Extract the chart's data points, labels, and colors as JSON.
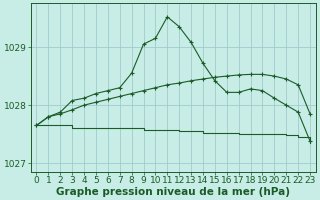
{
  "background_color": "#c8ece6",
  "grid_color": "#a0cccc",
  "line_color": "#1a5c28",
  "title": "Graphe pression niveau de la mer (hPa)",
  "title_fontsize": 7.5,
  "tick_fontsize": 6.5,
  "xlim": [
    -0.5,
    23.5
  ],
  "ylim": [
    1026.85,
    1029.75
  ],
  "yticks": [
    1027,
    1028,
    1029
  ],
  "xticks": [
    0,
    1,
    2,
    3,
    4,
    5,
    6,
    7,
    8,
    9,
    10,
    11,
    12,
    13,
    14,
    15,
    16,
    17,
    18,
    19,
    20,
    21,
    22,
    23
  ],
  "line1_x": [
    0,
    1,
    2,
    3,
    4,
    5,
    6,
    7,
    8,
    9,
    10,
    11,
    12,
    13,
    14,
    15,
    16,
    17,
    18,
    19,
    20,
    21,
    22,
    23
  ],
  "line1_y": [
    1027.65,
    1027.8,
    1027.85,
    1027.92,
    1028.0,
    1028.05,
    1028.1,
    1028.15,
    1028.2,
    1028.25,
    1028.3,
    1028.35,
    1028.38,
    1028.42,
    1028.45,
    1028.48,
    1028.5,
    1028.52,
    1028.53,
    1028.53,
    1028.5,
    1028.45,
    1028.35,
    1027.85
  ],
  "line2_x": [
    0,
    1,
    2,
    3,
    4,
    5,
    6,
    7,
    8,
    9,
    10,
    11,
    12,
    13,
    14,
    15,
    16,
    17,
    18,
    19,
    20,
    21,
    22,
    23
  ],
  "line2_y": [
    1027.65,
    1027.8,
    1027.88,
    1028.08,
    1028.12,
    1028.2,
    1028.25,
    1028.3,
    1028.55,
    1029.05,
    1029.15,
    1029.52,
    1029.35,
    1029.08,
    1028.72,
    1028.42,
    1028.22,
    1028.22,
    1028.28,
    1028.25,
    1028.12,
    1028.0,
    1027.88,
    1027.38
  ],
  "line3_x": [
    0,
    1,
    2,
    3,
    4,
    5,
    6,
    7,
    8,
    9,
    10,
    11,
    12,
    13,
    14,
    15,
    16,
    17,
    18,
    19,
    20,
    21,
    22,
    23
  ],
  "line3_y": [
    1027.65,
    1027.65,
    1027.65,
    1027.6,
    1027.6,
    1027.6,
    1027.6,
    1027.6,
    1027.6,
    1027.58,
    1027.57,
    1027.57,
    1027.55,
    1027.55,
    1027.52,
    1027.52,
    1027.52,
    1027.5,
    1027.5,
    1027.5,
    1027.5,
    1027.48,
    1027.45,
    1027.35
  ]
}
